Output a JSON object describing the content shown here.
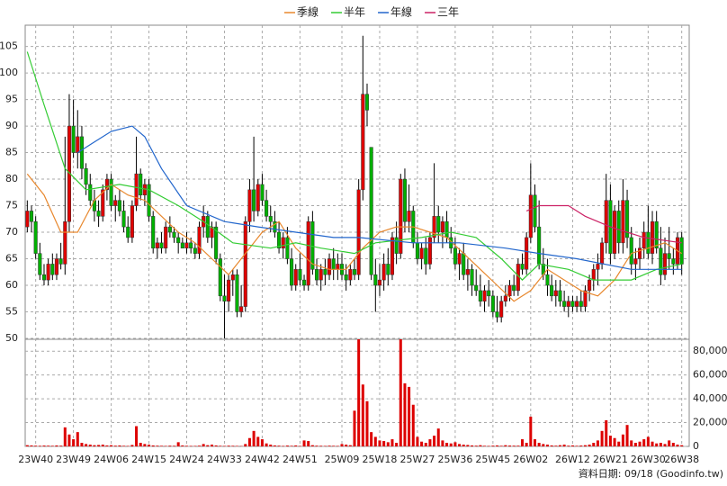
{
  "chart_data": {
    "type": "candlestick",
    "legend": "top",
    "grid": true,
    "up_color": "#e00000",
    "down_color": "#00b000",
    "categories": [
      null,
      null,
      "23W40",
      null,
      null,
      null,
      null,
      null,
      null,
      null,
      null,
      "23W49",
      null,
      null,
      null,
      null,
      null,
      null,
      null,
      null,
      "24W06",
      null,
      null,
      null,
      null,
      null,
      null,
      null,
      null,
      "24W15",
      null,
      null,
      null,
      null,
      null,
      null,
      null,
      null,
      "24W24",
      null,
      null,
      null,
      null,
      null,
      null,
      null,
      null,
      "24W33",
      null,
      null,
      null,
      null,
      null,
      null,
      null,
      null,
      "24W42",
      null,
      null,
      null,
      null,
      null,
      null,
      null,
      null,
      "24W51",
      null,
      null,
      null,
      null,
      null,
      null,
      null,
      null,
      null,
      "25W09",
      null,
      null,
      null,
      null,
      null,
      null,
      null,
      null,
      "25W18",
      null,
      null,
      null,
      null,
      null,
      null,
      null,
      null,
      "25W27",
      null,
      null,
      null,
      null,
      null,
      null,
      null,
      null,
      "25W36",
      null,
      null,
      null,
      null,
      null,
      null,
      null,
      null,
      "25W45",
      null,
      null,
      null,
      null,
      null,
      null,
      null,
      null,
      "26W02",
      null,
      null,
      null,
      null,
      null,
      null,
      null,
      null,
      null,
      "26W12",
      null,
      null,
      null,
      null,
      null,
      null,
      null,
      null,
      "26W21",
      null,
      null,
      null,
      null,
      null,
      null,
      null,
      null,
      "26W30",
      null,
      null,
      null,
      null,
      null,
      null,
      null,
      "26W38"
    ],
    "ohlc": [
      [
        71,
        76,
        70,
        74
      ],
      [
        74,
        75,
        70,
        72
      ],
      [
        72,
        73,
        65,
        66
      ],
      [
        66,
        68,
        61,
        62
      ],
      [
        62,
        64,
        60,
        61
      ],
      [
        61,
        65,
        60,
        64
      ],
      [
        64,
        66,
        61,
        62
      ],
      [
        62,
        66,
        61,
        65
      ],
      [
        65,
        68,
        63,
        64
      ],
      [
        64,
        88,
        62,
        72
      ],
      [
        72,
        96,
        70,
        90
      ],
      [
        90,
        95,
        84,
        85
      ],
      [
        85,
        93,
        82,
        88
      ],
      [
        88,
        90,
        80,
        82
      ],
      [
        82,
        83,
        77,
        79
      ],
      [
        79,
        81,
        75,
        76
      ],
      [
        76,
        78,
        72,
        74
      ],
      [
        74,
        76,
        71,
        73
      ],
      [
        73,
        79,
        72,
        78
      ],
      [
        78,
        81,
        76,
        80
      ],
      [
        80,
        81,
        74,
        75
      ],
      [
        75,
        77,
        72,
        76
      ],
      [
        76,
        78,
        73,
        74
      ],
      [
        74,
        76,
        70,
        71
      ],
      [
        71,
        73,
        68,
        69
      ],
      [
        69,
        76,
        68,
        75
      ],
      [
        75,
        88,
        74,
        81
      ],
      [
        81,
        82,
        76,
        77
      ],
      [
        77,
        80,
        75,
        79
      ],
      [
        79,
        80,
        72,
        73
      ],
      [
        73,
        74,
        66,
        67
      ],
      [
        67,
        69,
        65,
        68
      ],
      [
        68,
        70,
        66,
        67
      ],
      [
        67,
        72,
        66,
        71
      ],
      [
        71,
        73,
        69,
        70
      ],
      [
        70,
        71,
        68,
        69
      ],
      [
        69,
        70,
        66,
        68
      ],
      [
        68,
        69,
        67,
        67
      ],
      [
        67,
        70,
        66,
        68
      ],
      [
        68,
        69,
        66,
        67
      ],
      [
        67,
        68,
        65,
        66
      ],
      [
        66,
        72,
        65,
        71
      ],
      [
        71,
        75,
        69,
        73
      ],
      [
        73,
        74,
        68,
        69
      ],
      [
        69,
        72,
        67,
        71
      ],
      [
        71,
        72,
        64,
        65
      ],
      [
        65,
        66,
        57,
        58
      ],
      [
        58,
        62,
        50,
        57
      ],
      [
        57,
        62,
        55,
        61
      ],
      [
        61,
        63,
        58,
        62
      ],
      [
        62,
        63,
        54,
        55
      ],
      [
        55,
        60,
        54,
        56
      ],
      [
        56,
        73,
        55,
        72
      ],
      [
        72,
        80,
        70,
        78
      ],
      [
        78,
        88,
        72,
        74
      ],
      [
        74,
        80,
        73,
        79
      ],
      [
        79,
        81,
        75,
        76
      ],
      [
        76,
        78,
        72,
        73
      ],
      [
        73,
        75,
        70,
        72
      ],
      [
        72,
        74,
        69,
        70
      ],
      [
        70,
        72,
        66,
        67
      ],
      [
        67,
        70,
        65,
        69
      ],
      [
        69,
        71,
        64,
        65
      ],
      [
        65,
        67,
        59,
        60
      ],
      [
        60,
        64,
        59,
        63
      ],
      [
        63,
        66,
        60,
        61
      ],
      [
        61,
        62,
        59,
        60
      ],
      [
        60,
        73,
        59,
        72
      ],
      [
        72,
        74,
        62,
        63
      ],
      [
        63,
        65,
        60,
        61
      ],
      [
        61,
        64,
        59,
        63
      ],
      [
        63,
        65,
        60,
        62
      ],
      [
        62,
        66,
        61,
        65
      ],
      [
        65,
        67,
        61,
        63
      ],
      [
        63,
        66,
        61,
        64
      ],
      [
        64,
        66,
        61,
        62
      ],
      [
        62,
        64,
        59,
        61
      ],
      [
        61,
        64,
        60,
        63
      ],
      [
        63,
        65,
        61,
        62
      ],
      [
        62,
        80,
        61,
        78
      ],
      [
        78,
        107,
        76,
        96
      ],
      [
        96,
        98,
        90,
        93
      ],
      [
        86,
        86,
        61,
        62
      ],
      [
        62,
        65,
        55,
        60
      ],
      [
        60,
        64,
        58,
        61
      ],
      [
        61,
        66,
        59,
        64
      ],
      [
        64,
        67,
        60,
        62
      ],
      [
        62,
        70,
        61,
        69
      ],
      [
        69,
        72,
        64,
        66
      ],
      [
        66,
        81,
        65,
        80
      ],
      [
        80,
        82,
        70,
        72
      ],
      [
        72,
        79,
        70,
        74
      ],
      [
        74,
        75,
        67,
        68
      ],
      [
        68,
        70,
        64,
        65
      ],
      [
        65,
        68,
        63,
        67
      ],
      [
        67,
        69,
        62,
        64
      ],
      [
        64,
        70,
        63,
        69
      ],
      [
        69,
        83,
        68,
        73
      ],
      [
        73,
        75,
        68,
        70
      ],
      [
        70,
        73,
        67,
        72
      ],
      [
        72,
        74,
        68,
        69
      ],
      [
        69,
        71,
        66,
        67
      ],
      [
        67,
        69,
        63,
        64
      ],
      [
        64,
        67,
        61,
        66
      ],
      [
        66,
        68,
        61,
        62
      ],
      [
        62,
        65,
        59,
        63
      ],
      [
        63,
        64,
        58,
        60
      ],
      [
        60,
        63,
        58,
        59
      ],
      [
        59,
        62,
        56,
        57
      ],
      [
        57,
        60,
        55,
        59
      ],
      [
        59,
        61,
        56,
        58
      ],
      [
        58,
        59,
        54,
        55
      ],
      [
        55,
        58,
        53,
        54
      ],
      [
        54,
        58,
        53,
        57
      ],
      [
        57,
        60,
        56,
        58
      ],
      [
        58,
        61,
        57,
        60
      ],
      [
        60,
        62,
        58,
        59
      ],
      [
        59,
        65,
        58,
        64
      ],
      [
        64,
        66,
        62,
        63
      ],
      [
        63,
        70,
        62,
        69
      ],
      [
        69,
        83,
        68,
        77
      ],
      [
        77,
        79,
        70,
        71
      ],
      [
        71,
        76,
        63,
        64
      ],
      [
        64,
        67,
        61,
        62
      ],
      [
        62,
        65,
        58,
        60
      ],
      [
        60,
        62,
        57,
        58
      ],
      [
        58,
        61,
        56,
        59
      ],
      [
        59,
        61,
        56,
        57
      ],
      [
        57,
        59,
        55,
        56
      ],
      [
        56,
        58,
        54,
        57
      ],
      [
        57,
        58,
        55,
        56
      ],
      [
        56,
        58,
        55,
        57
      ],
      [
        57,
        59,
        55,
        56
      ],
      [
        56,
        60,
        55,
        59
      ],
      [
        59,
        62,
        57,
        61
      ],
      [
        61,
        64,
        59,
        63
      ],
      [
        63,
        66,
        60,
        64
      ],
      [
        64,
        69,
        63,
        68
      ],
      [
        68,
        81,
        66,
        76
      ],
      [
        76,
        79,
        64,
        66
      ],
      [
        66,
        75,
        65,
        74
      ],
      [
        74,
        76,
        66,
        68
      ],
      [
        68,
        80,
        66,
        76
      ],
      [
        76,
        78,
        67,
        69
      ],
      [
        69,
        71,
        62,
        64
      ],
      [
        64,
        67,
        61,
        65
      ],
      [
        65,
        69,
        63,
        67
      ],
      [
        67,
        72,
        65,
        70
      ],
      [
        70,
        75,
        65,
        66
      ],
      [
        66,
        74,
        64,
        72
      ],
      [
        72,
        74,
        66,
        67
      ],
      [
        67,
        71,
        60,
        62
      ],
      [
        62,
        69,
        61,
        66
      ],
      [
        66,
        71,
        63,
        65
      ],
      [
        65,
        67,
        62,
        64
      ],
      [
        64,
        70,
        63,
        69
      ],
      [
        69,
        70,
        62,
        64
      ]
    ],
    "ylim": [
      50,
      109
    ],
    "yticks": [
      50,
      55,
      60,
      65,
      70,
      75,
      80,
      85,
      90,
      95,
      100,
      105
    ],
    "lines": [
      {
        "name": "季線",
        "color": "#e8882e",
        "x": [
          0,
          4,
          8,
          12,
          16,
          20,
          24,
          28,
          32,
          36,
          40,
          44,
          48,
          52,
          56,
          60,
          64,
          68,
          72,
          76,
          80,
          84,
          88,
          92,
          96,
          100,
          104,
          108,
          112,
          116,
          120,
          124,
          128,
          132,
          136,
          140,
          144,
          148,
          152,
          156
        ],
        "values": [
          81,
          77,
          70,
          70,
          76,
          79,
          77,
          76,
          73,
          70,
          68,
          65,
          62,
          66,
          70,
          72,
          67,
          64,
          63,
          63,
          67,
          70,
          71,
          71,
          70,
          69,
          66,
          63,
          60,
          57,
          59,
          63,
          61,
          59,
          58,
          61,
          66,
          67,
          68,
          66
        ]
      },
      {
        "name": "半年",
        "color": "#33cc33",
        "x": [
          0,
          4,
          9,
          14,
          22,
          29,
          36,
          42,
          49,
          58,
          64,
          70,
          78,
          83,
          94,
          101,
          107,
          113,
          118,
          122,
          129,
          135,
          144,
          150,
          156
        ],
        "values": [
          104,
          94,
          82,
          78,
          79,
          78,
          75,
          72,
          68,
          67,
          68,
          67,
          66,
          68,
          69,
          70,
          69,
          65,
          61,
          64,
          63,
          61,
          61,
          63,
          64
        ]
      },
      {
        "name": "年線",
        "color": "#2266cc",
        "x": [
          12,
          16,
          20,
          25,
          28,
          32,
          38,
          47,
          55,
          64,
          73,
          79,
          92,
          103,
          114,
          122,
          131,
          144,
          156
        ],
        "values": [
          85,
          87,
          89,
          90,
          88,
          82,
          75,
          72,
          71,
          70,
          69,
          69,
          68,
          68,
          67,
          66,
          65,
          63,
          63
        ]
      },
      {
        "name": "三年",
        "color": "#cc2266",
        "x": [
          119,
          122,
          129,
          133,
          139,
          147,
          156
        ],
        "values": [
          74,
          75,
          75,
          73,
          71,
          69,
          68
        ]
      }
    ],
    "volume": {
      "color": "#dd0000",
      "ylim": [
        0,
        90000
      ],
      "yticks": [
        0,
        {
          "value": 20000,
          "label": "20,000"
        },
        {
          "value": 40000,
          "label": "40,000"
        },
        {
          "value": 60000,
          "label": "60,000"
        },
        {
          "value": 80000,
          "label": "80,000"
        }
      ],
      "values": [
        1000,
        800,
        600,
        500,
        700,
        600,
        500,
        800,
        600,
        16000,
        10000,
        6000,
        12000,
        3000,
        2000,
        1500,
        1000,
        1200,
        1500,
        800,
        1000,
        600,
        800,
        500,
        400,
        1200,
        17000,
        3000,
        2000,
        1500,
        800,
        600,
        500,
        400,
        600,
        500,
        3500,
        800,
        500,
        400,
        400,
        600,
        2000,
        1000,
        1500,
        800,
        500,
        400,
        600,
        500,
        400,
        300,
        2000,
        7000,
        13000,
        8000,
        6000,
        2500,
        1500,
        800,
        600,
        400,
        700,
        500,
        800,
        400,
        5000,
        4500,
        1000,
        600,
        500,
        400,
        600,
        500,
        400,
        2000,
        1500,
        1000,
        30000,
        90000,
        52000,
        38000,
        12000,
        8000,
        5000,
        4500,
        3500,
        6000,
        3000,
        90000,
        53000,
        50000,
        35000,
        8000,
        4000,
        3000,
        6000,
        9000,
        15000,
        5000,
        3000,
        2500,
        3500,
        2000,
        1500,
        1200,
        800,
        600,
        1000,
        500,
        400,
        600,
        800,
        500,
        1000,
        700,
        600,
        600,
        6000,
        3000,
        25000,
        6000,
        3000,
        2000,
        1500,
        800,
        600,
        1000,
        1500,
        600,
        800,
        500,
        700,
        1000,
        1500,
        3000,
        5000,
        13000,
        22000,
        9000,
        7000,
        4000,
        10000,
        18000,
        5000,
        3000,
        4000,
        6000,
        8000,
        4000,
        2500,
        3000,
        2000,
        5000,
        3000,
        1500,
        1000
      ]
    },
    "source_note": "資料日期: 09/18 (Goodinfo.tw)"
  }
}
